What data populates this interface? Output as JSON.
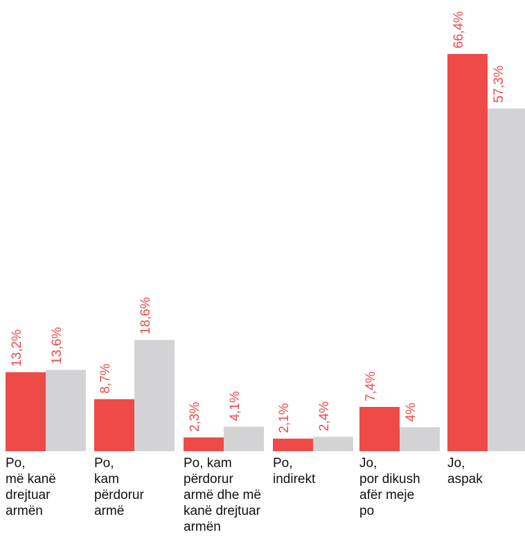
{
  "chart_data": {
    "type": "bar",
    "categories": [
      "Po,\nmë kanë\ndrejtuar\narmën",
      "Po,\nkam\npërdorur\narmë",
      "Po, kam\npërdorur\narmë dhe më\nkanë drejtuar\narmën",
      "Po,\nindirekt",
      "Jo,\npor dikush\nafër meje\npo",
      "Jo,\naspak"
    ],
    "series": [
      {
        "values": [
          13.2,
          8.7,
          2.3,
          2.1,
          7.4,
          66.4
        ],
        "labels": [
          "13,2%",
          "8,7%",
          "2,3%",
          "2,1%",
          "7,4%",
          "66,4%"
        ],
        "color": "#ee4a48"
      },
      {
        "values": [
          13.6,
          18.6,
          4.1,
          2.4,
          4,
          57.3
        ],
        "labels": [
          "13,6%",
          "18,6%",
          "4,1%",
          "2,4%",
          "4%",
          "57,3%"
        ],
        "color": "#d3d3d5"
      }
    ],
    "label_color": "#ee4a48",
    "ylim": [
      0,
      66.4
    ],
    "grid": false,
    "legend": "none"
  }
}
